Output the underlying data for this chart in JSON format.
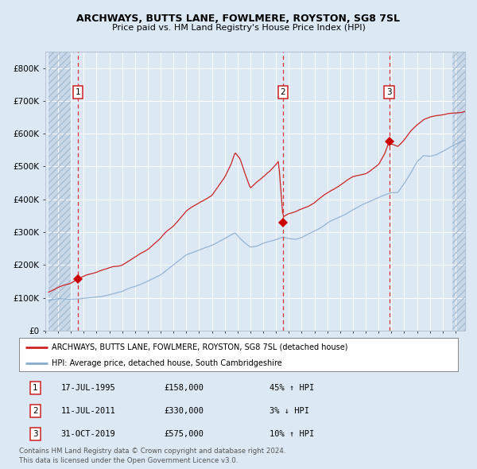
{
  "title_line1": "ARCHWAYS, BUTTS LANE, FOWLMERE, ROYSTON, SG8 7SL",
  "title_line2": "Price paid vs. HM Land Registry's House Price Index (HPI)",
  "ylim": [
    0,
    850000
  ],
  "yticks": [
    0,
    100000,
    200000,
    300000,
    400000,
    500000,
    600000,
    700000,
    800000
  ],
  "ytick_labels": [
    "£0",
    "£100K",
    "£200K",
    "£300K",
    "£400K",
    "£500K",
    "£600K",
    "£700K",
    "£800K"
  ],
  "xstart": 1993.25,
  "xend": 2025.75,
  "background_color": "#dce9f5",
  "red_line_color": "#cc2222",
  "blue_line_color": "#88aacc",
  "sale_years": [
    1995.54,
    2011.54,
    2019.83
  ],
  "sale_prices": [
    158000,
    330000,
    575000
  ],
  "sale_labels": [
    "1",
    "2",
    "3"
  ],
  "legend_entries": [
    "ARCHWAYS, BUTTS LANE, FOWLMERE, ROYSTON, SG8 7SL (detached house)",
    "HPI: Average price, detached house, South Cambridgeshire"
  ],
  "table_rows": [
    {
      "num": "1",
      "date": "17-JUL-1995",
      "price": "£158,000",
      "hpi": "45% ↑ HPI"
    },
    {
      "num": "2",
      "date": "11-JUL-2011",
      "price": "£330,000",
      "hpi": "3% ↓ HPI"
    },
    {
      "num": "3",
      "date": "31-OCT-2019",
      "price": "£575,000",
      "hpi": "10% ↑ HPI"
    }
  ],
  "footnote1": "Contains HM Land Registry data © Crown copyright and database right 2024.",
  "footnote2": "This data is licensed under the Open Government Licence v3.0.",
  "hpi_waypoints": [
    [
      1993.25,
      92000
    ],
    [
      1994.0,
      95000
    ],
    [
      1995.0,
      98000
    ],
    [
      1996.0,
      103000
    ],
    [
      1997.0,
      110000
    ],
    [
      1998.0,
      118000
    ],
    [
      1999.0,
      128000
    ],
    [
      2000.0,
      142000
    ],
    [
      2001.0,
      158000
    ],
    [
      2002.0,
      180000
    ],
    [
      2003.0,
      210000
    ],
    [
      2004.0,
      238000
    ],
    [
      2005.0,
      255000
    ],
    [
      2006.0,
      270000
    ],
    [
      2007.0,
      290000
    ],
    [
      2007.8,
      305000
    ],
    [
      2008.5,
      275000
    ],
    [
      2009.0,
      258000
    ],
    [
      2009.5,
      262000
    ],
    [
      2010.0,
      272000
    ],
    [
      2010.5,
      278000
    ],
    [
      2011.0,
      282000
    ],
    [
      2011.5,
      285000
    ],
    [
      2012.0,
      280000
    ],
    [
      2012.5,
      278000
    ],
    [
      2013.0,
      285000
    ],
    [
      2013.5,
      295000
    ],
    [
      2014.0,
      305000
    ],
    [
      2014.5,
      315000
    ],
    [
      2015.0,
      328000
    ],
    [
      2015.5,
      338000
    ],
    [
      2016.0,
      350000
    ],
    [
      2016.5,
      360000
    ],
    [
      2017.0,
      372000
    ],
    [
      2017.5,
      382000
    ],
    [
      2018.0,
      392000
    ],
    [
      2018.5,
      400000
    ],
    [
      2019.0,
      408000
    ],
    [
      2019.5,
      415000
    ],
    [
      2020.0,
      420000
    ],
    [
      2020.5,
      418000
    ],
    [
      2021.0,
      445000
    ],
    [
      2021.5,
      475000
    ],
    [
      2022.0,
      510000
    ],
    [
      2022.5,
      530000
    ],
    [
      2023.0,
      530000
    ],
    [
      2023.5,
      535000
    ],
    [
      2024.0,
      545000
    ],
    [
      2024.5,
      555000
    ],
    [
      2025.0,
      565000
    ],
    [
      2025.75,
      575000
    ]
  ],
  "red_waypoints": [
    [
      1993.25,
      118000
    ],
    [
      1994.0,
      128000
    ],
    [
      1995.0,
      142000
    ],
    [
      1995.54,
      158000
    ],
    [
      1996.0,
      165000
    ],
    [
      1997.0,
      175000
    ],
    [
      1998.0,
      188000
    ],
    [
      1999.0,
      200000
    ],
    [
      2000.0,
      218000
    ],
    [
      2001.0,
      240000
    ],
    [
      2002.0,
      268000
    ],
    [
      2003.0,
      305000
    ],
    [
      2004.0,
      348000
    ],
    [
      2005.0,
      375000
    ],
    [
      2006.0,
      400000
    ],
    [
      2007.0,
      450000
    ],
    [
      2007.5,
      490000
    ],
    [
      2007.8,
      525000
    ],
    [
      2008.2,
      505000
    ],
    [
      2008.5,
      470000
    ],
    [
      2009.0,
      420000
    ],
    [
      2009.5,
      440000
    ],
    [
      2010.0,
      455000
    ],
    [
      2010.5,
      470000
    ],
    [
      2011.0,
      490000
    ],
    [
      2011.2,
      500000
    ],
    [
      2011.54,
      330000
    ],
    [
      2012.0,
      340000
    ],
    [
      2012.5,
      345000
    ],
    [
      2013.0,
      352000
    ],
    [
      2013.5,
      360000
    ],
    [
      2014.0,
      370000
    ],
    [
      2014.5,
      385000
    ],
    [
      2015.0,
      400000
    ],
    [
      2015.5,
      415000
    ],
    [
      2016.0,
      428000
    ],
    [
      2016.5,
      440000
    ],
    [
      2017.0,
      452000
    ],
    [
      2017.5,
      462000
    ],
    [
      2018.0,
      472000
    ],
    [
      2018.5,
      488000
    ],
    [
      2019.0,
      505000
    ],
    [
      2019.5,
      540000
    ],
    [
      2019.83,
      575000
    ],
    [
      2020.0,
      565000
    ],
    [
      2020.5,
      558000
    ],
    [
      2021.0,
      580000
    ],
    [
      2021.5,
      605000
    ],
    [
      2022.0,
      625000
    ],
    [
      2022.5,
      640000
    ],
    [
      2023.0,
      648000
    ],
    [
      2023.5,
      655000
    ],
    [
      2024.0,
      660000
    ],
    [
      2024.5,
      665000
    ],
    [
      2025.0,
      668000
    ],
    [
      2025.75,
      672000
    ]
  ]
}
